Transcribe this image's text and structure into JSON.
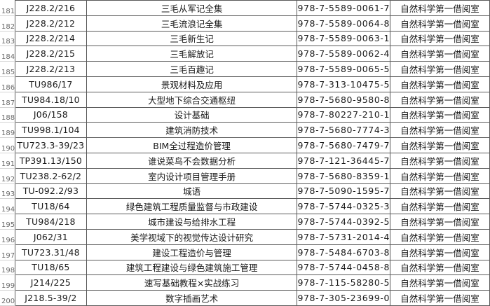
{
  "rows": [
    {
      "n": "181",
      "callno": "J228.2/216",
      "title": "三毛从军记全集",
      "isbn": "978-7-5589-0061-7",
      "location": "自然科学第一借阅室"
    },
    {
      "n": "182",
      "callno": "J228.2/212",
      "title": "三毛流浪记全集",
      "isbn": "978-7-5589-0064-8",
      "location": "自然科学第一借阅室"
    },
    {
      "n": "183",
      "callno": "J228.2/214",
      "title": "三毛新生记",
      "isbn": "978-7-5589-0063-1",
      "location": "自然科学第一借阅室"
    },
    {
      "n": "184",
      "callno": "J228.2/215",
      "title": "三毛解放记",
      "isbn": "978-7-5589-0062-4",
      "location": "自然科学第一借阅室"
    },
    {
      "n": "185",
      "callno": "J228.2/213",
      "title": "三毛百趣记",
      "isbn": "978-7-5589-0065-5",
      "location": "自然科学第一借阅室"
    },
    {
      "n": "186",
      "callno": "TU986/17",
      "title": "景观材料及应用",
      "isbn": "978-7-313-10475-5",
      "location": "自然科学第一借阅室"
    },
    {
      "n": "187",
      "callno": "TU984.18/10",
      "title": "大型地下综合交通枢纽",
      "isbn": "978-7-5680-9580-8",
      "location": "自然科学第一借阅室"
    },
    {
      "n": "188",
      "callno": "J06/158",
      "title": "设计基础",
      "isbn": "978-7-80227-210-1",
      "location": "自然科学第一借阅室"
    },
    {
      "n": "189",
      "callno": "TU998.1/104",
      "title": "建筑消防技术",
      "isbn": "978-7-5680-7774-3",
      "location": "自然科学第一借阅室"
    },
    {
      "n": "190",
      "callno": "TU723.3-39/23",
      "title": "BIM全过程造价管理",
      "isbn": "978-7-5680-7479-7",
      "location": "自然科学第一借阅室"
    },
    {
      "n": "191",
      "callno": "TP391.13/150",
      "title": "谁说菜鸟不会数据分析",
      "isbn": "978-7-121-36445-7",
      "location": "自然科学第一借阅室"
    },
    {
      "n": "192",
      "callno": "TU238.2-62/2",
      "title": "室内设计项目管理手册",
      "isbn": "978-7-5680-8359-1",
      "location": "自然科学第一借阅室"
    },
    {
      "n": "193",
      "callno": "TU-092.2/93",
      "title": "城语",
      "isbn": "978-7-5090-1595-7",
      "location": "自然科学第一借阅室"
    },
    {
      "n": "194",
      "callno": "TU18/64",
      "title": "绿色建筑工程质量监督与市政建设",
      "isbn": "978-7-5744-0325-3",
      "location": "自然科学第一借阅室"
    },
    {
      "n": "195",
      "callno": "TU984/218",
      "title": "城市建设与给排水工程",
      "isbn": "978-7-5744-0392-5",
      "location": "自然科学第一借阅室"
    },
    {
      "n": "196",
      "callno": "J062/31",
      "title": "美学视域下的视觉传达设计研究",
      "isbn": "978-7-5731-2014-4",
      "location": "自然科学第一借阅室"
    },
    {
      "n": "197",
      "callno": "TU723.31/48",
      "title": "建设工程造价与管理",
      "isbn": "978-7-5484-6703-8",
      "location": "自然科学第一借阅室"
    },
    {
      "n": "198",
      "callno": "TU18/65",
      "title": "建筑工程建设与绿色建筑施工管理",
      "isbn": "978-7-5744-0458-8",
      "location": "自然科学第一借阅室"
    },
    {
      "n": "199",
      "callno": "J214/225",
      "title": "速写基础教程×实战练习",
      "isbn": "978-7-115-58280-5",
      "location": "自然科学第一借阅室"
    },
    {
      "n": "200",
      "callno": "J218.5-39/2",
      "title": "数字插画艺术",
      "isbn": "978-7-305-23699-0",
      "location": "自然科学第一借阅室"
    }
  ]
}
